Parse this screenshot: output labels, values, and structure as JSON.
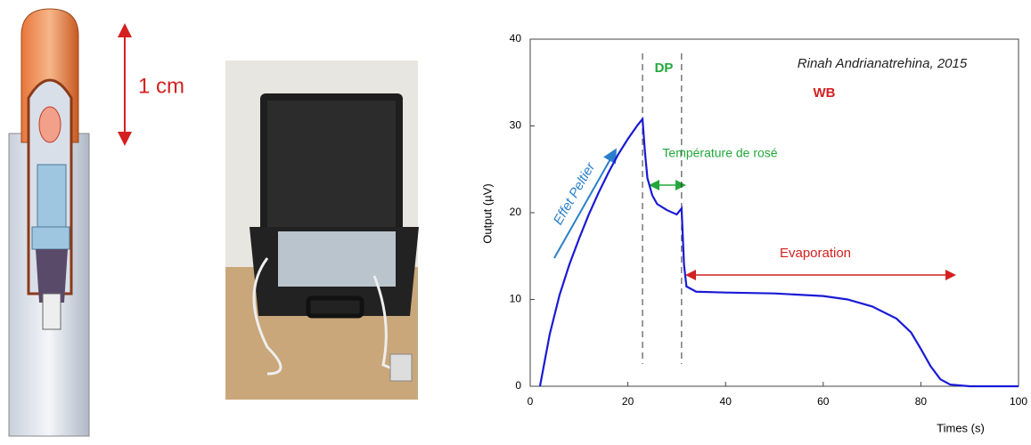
{
  "scale_label": "1 cm",
  "chart_data": {
    "type": "line",
    "xlabel": "Times (s)",
    "ylabel": "Output (µV)",
    "x": [
      2,
      3,
      4,
      6,
      8,
      10,
      12,
      14,
      16,
      18,
      20,
      22,
      23,
      23.5,
      24,
      25,
      26,
      28,
      30,
      31,
      31.5,
      32,
      34,
      40,
      50,
      60,
      65,
      70,
      75,
      78,
      80,
      82,
      84,
      86,
      90,
      100
    ],
    "values": [
      0,
      3,
      6,
      10.5,
      14,
      17,
      19.8,
      22.3,
      24.6,
      26.7,
      28.5,
      30.1,
      30.8,
      27,
      24,
      22,
      21,
      20.3,
      19.8,
      20.5,
      14,
      11.5,
      10.9,
      10.8,
      10.7,
      10.4,
      10,
      9.2,
      7.8,
      6.2,
      4.3,
      2.3,
      0.8,
      0.2,
      0,
      0
    ],
    "color": "#1a1ad6",
    "xlim": [
      0,
      100
    ],
    "ylim": [
      0,
      40
    ],
    "xticks": [
      0,
      20,
      40,
      60,
      80,
      100
    ],
    "yticks": [
      0,
      10,
      20,
      30,
      40
    ],
    "vlines": [
      23,
      31
    ],
    "annotations": [
      "Rinah Andrianatrehina, 2015",
      "DP",
      "WB",
      "Température de rosé",
      "Evaporation",
      "Effet Peltier"
    ]
  }
}
